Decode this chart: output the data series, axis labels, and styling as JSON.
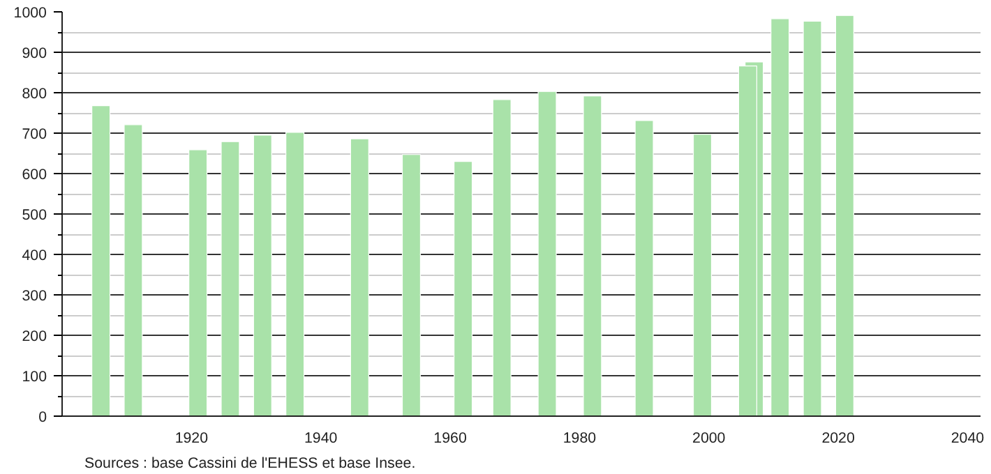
{
  "chart_data": {
    "type": "bar",
    "x": [
      1906,
      1911,
      1921,
      1926,
      1931,
      1936,
      1946,
      1954,
      1962,
      1968,
      1975,
      1982,
      1990,
      1999,
      2006,
      2007,
      2011,
      2016,
      2021
    ],
    "values": [
      768,
      721,
      659,
      679,
      695,
      702,
      686,
      647,
      630,
      783,
      803,
      792,
      731,
      697,
      866,
      876,
      983,
      977,
      991
    ],
    "color": "#a9e2a9",
    "xlim": [
      1900,
      2042
    ],
    "xticks": [
      1920,
      1940,
      1960,
      1980,
      2000,
      2020,
      2040
    ],
    "ylim": [
      0,
      1000
    ],
    "yticks": [
      0,
      100,
      200,
      300,
      400,
      500,
      600,
      700,
      800,
      900,
      1000
    ],
    "grid": "y",
    "annotations": [
      "Sources : base Cassini de l'EHESS et base Insee."
    ]
  }
}
